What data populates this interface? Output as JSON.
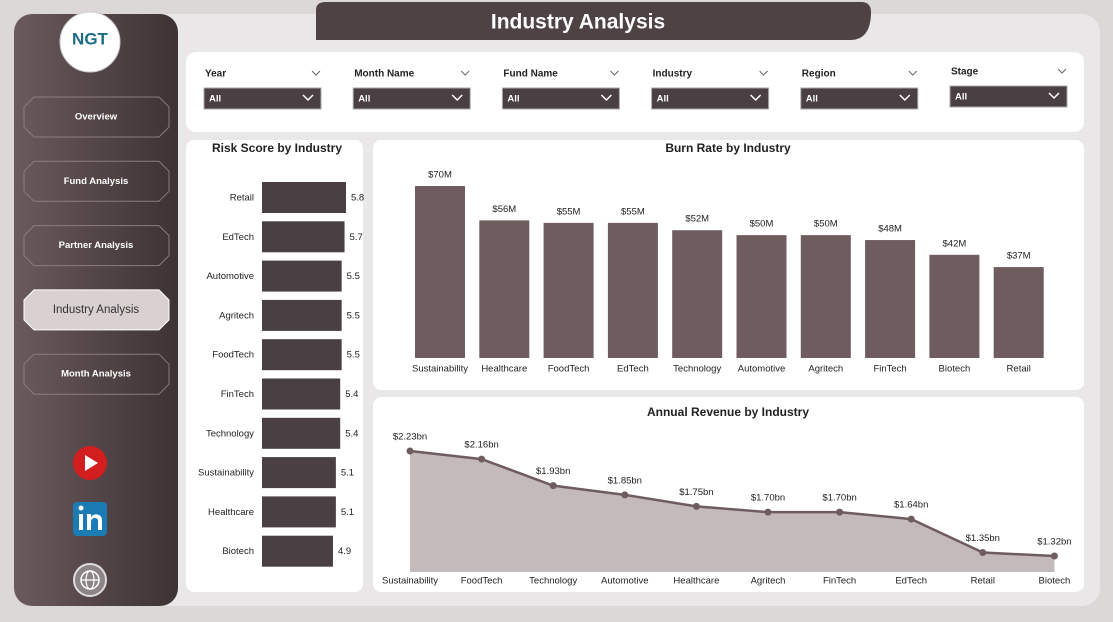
{
  "header": {
    "title": "Industry Analysis"
  },
  "logo": {
    "text": "NGT"
  },
  "nav": [
    "Overview",
    "Fund Analysis",
    "Partner Analysis",
    "Industry Analysis",
    "Month Analysis"
  ],
  "filters": [
    {
      "label": "Year",
      "value": "All"
    },
    {
      "label": "Month Name",
      "value": "All"
    },
    {
      "label": "Fund Name",
      "value": "All"
    },
    {
      "label": "Industry",
      "value": "All"
    },
    {
      "label": "Region",
      "value": "All"
    },
    {
      "label": "Stage",
      "value": "All"
    }
  ],
  "chart_data": [
    {
      "type": "hbar",
      "title": "Risk Score by Industry",
      "categories": [
        "Retail",
        "EdTech",
        "Automotive",
        "Agritech",
        "FoodTech",
        "FinTech",
        "Technology",
        "Sustainability",
        "Healthcare",
        "Biotech"
      ],
      "values": [
        5.8,
        5.7,
        5.5,
        5.5,
        5.5,
        5.4,
        5.4,
        5.1,
        5.1,
        4.9
      ],
      "color": "#4a3f42"
    },
    {
      "type": "bar",
      "title": "Burn Rate by Industry",
      "categories": [
        "Sustainability",
        "Healthcare",
        "FoodTech",
        "EdTech",
        "Technology",
        "Automotive",
        "Agritech",
        "FinTech",
        "Biotech",
        "Retail"
      ],
      "values": [
        70,
        56,
        55,
        55,
        52,
        50,
        50,
        48,
        42,
        37
      ],
      "value_labels": [
        "$70M",
        "$56M",
        "$55M",
        "$55M",
        "$52M",
        "$50M",
        "$50M",
        "$48M",
        "$42M",
        "$37M"
      ],
      "color": "#6e5c5e"
    },
    {
      "type": "area",
      "title": "Annual Revenue by Industry",
      "categories": [
        "Sustainability",
        "FoodTech",
        "Technology",
        "Automotive",
        "Healthcare",
        "Agritech",
        "FinTech",
        "EdTech",
        "Retail",
        "Biotech"
      ],
      "values": [
        2.23,
        2.16,
        1.93,
        1.85,
        1.75,
        1.7,
        1.7,
        1.64,
        1.35,
        1.32
      ],
      "value_labels": [
        "$2.23bn",
        "$2.16bn",
        "$1.93bn",
        "$1.85bn",
        "$1.75bn",
        "$1.70bn",
        "$1.70bn",
        "$1.64bn",
        "$1.35bn",
        "$1.32bn"
      ],
      "color": "#6e5c5e",
      "fill": "#c4babc"
    }
  ]
}
